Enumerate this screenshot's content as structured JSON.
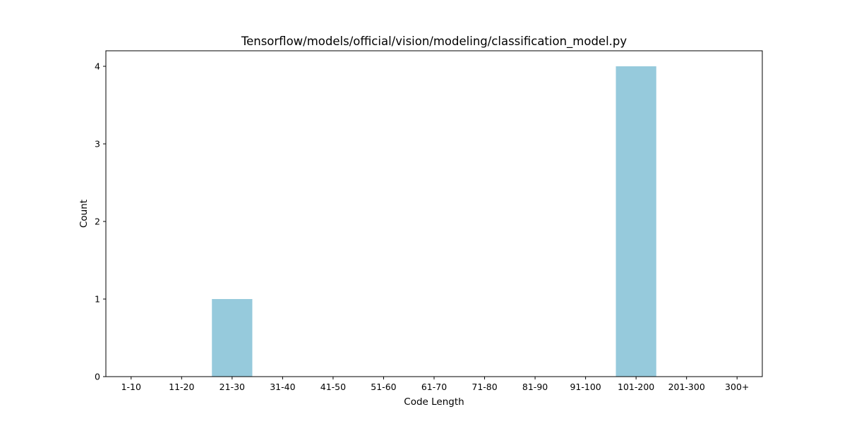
{
  "chart_data": {
    "type": "bar",
    "title": "Tensorflow/models/official/vision/modeling/classification_model.py",
    "xlabel": "Code Length",
    "ylabel": "Count",
    "categories": [
      "1-10",
      "11-20",
      "21-30",
      "31-40",
      "41-50",
      "51-60",
      "61-70",
      "71-80",
      "81-90",
      "91-100",
      "101-200",
      "201-300",
      "300+"
    ],
    "values": [
      0,
      0,
      1,
      0,
      0,
      0,
      0,
      0,
      0,
      0,
      4,
      0,
      0
    ],
    "ylim": [
      0,
      4.2
    ],
    "yticks": [
      0,
      1,
      2,
      3,
      4
    ],
    "bar_color": "#96cadc",
    "grid": false,
    "legend": false
  }
}
